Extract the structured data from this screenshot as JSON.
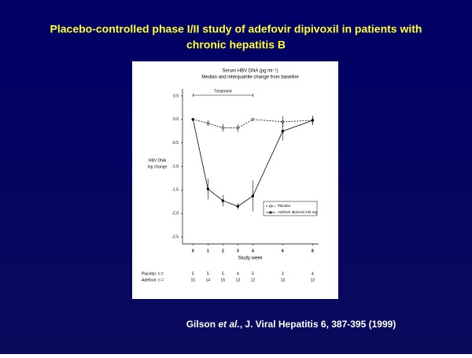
{
  "slide": {
    "title_lines": [
      "Placebo-controlled phase I/II study of adefovir dipivoxil in patients with",
      "chronic hepatitis B"
    ],
    "citation": {
      "author": "Gilson ",
      "etal": "et al.",
      "rest": ", J. Viral Hepatitis 6, 387-395 (1999)"
    }
  },
  "chart_data": {
    "type": "line",
    "title": "Serum HBV DNA (pg ml⁻¹)",
    "subtitle": "Median and interquartile change from baseline",
    "x_label": "Study week",
    "y_label_lines": [
      "HBV DNA",
      "log change"
    ],
    "treatment": {
      "label": "Treatment",
      "start": 0,
      "end": 4
    },
    "x": [
      0,
      1,
      2,
      3,
      4,
      6,
      8
    ],
    "xlim": [
      -0.7,
      8.4
    ],
    "xticks": [
      0,
      1,
      2,
      3,
      4,
      6,
      8
    ],
    "ylim": [
      -2.65,
      0.65
    ],
    "yticks": [
      0.5,
      {
        "value": 0,
        "label": "0.0"
      },
      -0.5,
      {
        "value": -1,
        "label": "-1.0"
      },
      -1.5,
      {
        "value": -2,
        "label": "-2.0"
      },
      -2.5
    ],
    "legend": "lower right",
    "series": [
      {
        "name": "Placebo",
        "color": "#000000",
        "dashed": true,
        "marker": "open",
        "values": [
          0,
          -0.08,
          -0.18,
          -0.18,
          0.0,
          -0.05,
          -0.02
        ],
        "errors": [
          0,
          0.06,
          0.08,
          0.08,
          0.03,
          0.12,
          0.08
        ]
      },
      {
        "name": "Adefovir dipivoxil 125 mg",
        "color": "#000000",
        "dashed": false,
        "marker": "filled",
        "values": [
          0,
          -1.48,
          -1.73,
          -1.85,
          -1.63,
          -0.25,
          -0.02
        ],
        "errors": [
          0,
          0.22,
          0.12,
          0.07,
          0.33,
          0.2,
          0.1
        ]
      }
    ],
    "n_table": [
      {
        "label": "Placebo: n =",
        "values": [
          5,
          5,
          5,
          4,
          5,
          3,
          4
        ]
      },
      {
        "label": "Adefovir: n =",
        "values": [
          15,
          14,
          15,
          13,
          12,
          13,
          12
        ]
      }
    ]
  }
}
